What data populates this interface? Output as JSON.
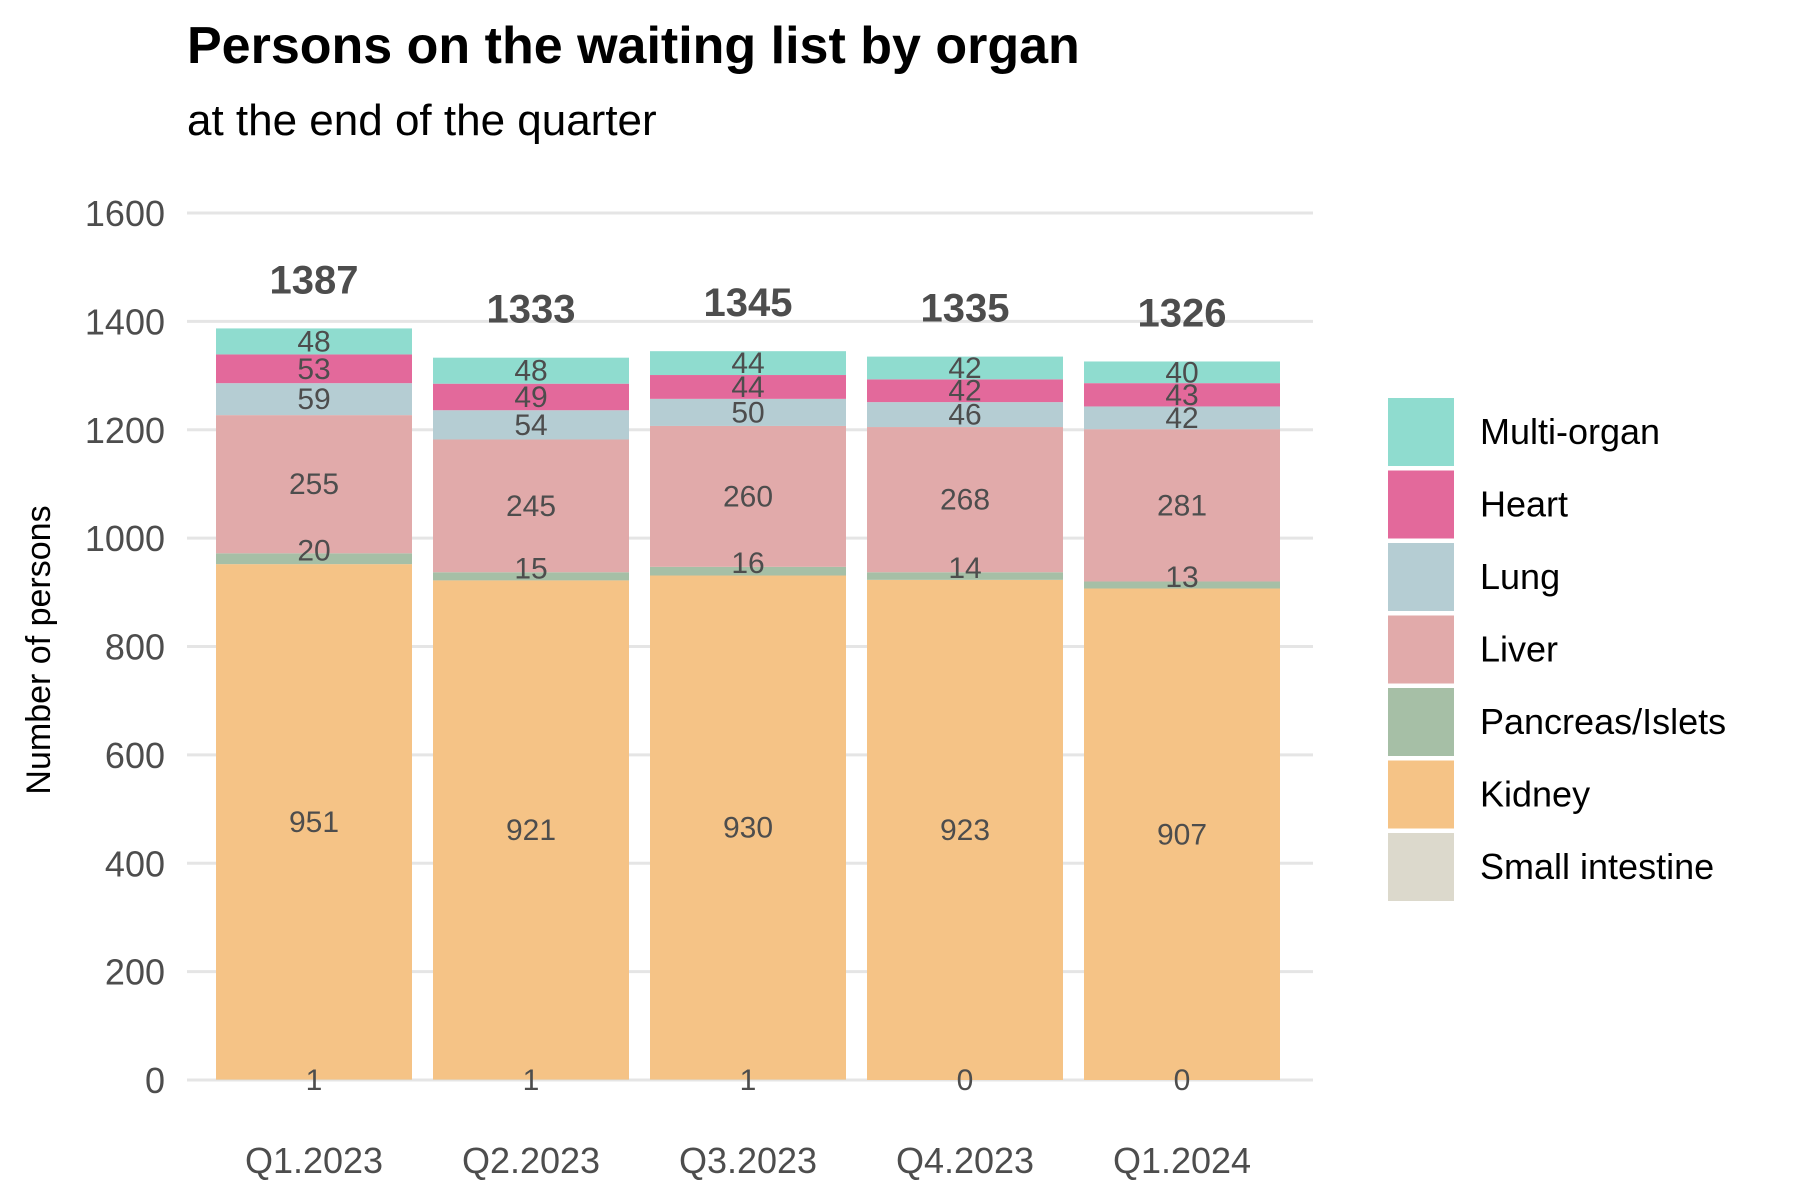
{
  "chart_data": {
    "type": "bar",
    "stacked": true,
    "title": "Persons on the waiting list by organ",
    "subtitle": "at the end of the quarter",
    "ylabel": "Number of persons",
    "xlabel": "",
    "ylim": [
      0,
      1600
    ],
    "yticks": [
      "0",
      "200",
      "400",
      "600",
      "800",
      "1000",
      "1200",
      "1400",
      "1600"
    ],
    "categories": [
      "Q1.2023",
      "Q2.2023",
      "Q3.2023",
      "Q4.2023",
      "Q1.2024"
    ],
    "totals": [
      1387,
      1333,
      1345,
      1335,
      1326
    ],
    "grid": true,
    "legend_position": "right",
    "series": [
      {
        "name": "Small intestine",
        "color": "#dcd9cc",
        "values": [
          1,
          1,
          1,
          0,
          0
        ]
      },
      {
        "name": "Kidney",
        "color": "#f5c386",
        "values": [
          951,
          921,
          930,
          923,
          907
        ]
      },
      {
        "name": "Pancreas/Islets",
        "color": "#a6bfa6",
        "values": [
          20,
          15,
          16,
          14,
          13
        ]
      },
      {
        "name": "Liver",
        "color": "#e1aaaa",
        "values": [
          255,
          245,
          260,
          268,
          281
        ]
      },
      {
        "name": "Lung",
        "color": "#b5cdd3",
        "values": [
          59,
          54,
          50,
          46,
          42
        ]
      },
      {
        "name": "Heart",
        "color": "#e3699b",
        "values": [
          53,
          49,
          44,
          42,
          43
        ]
      },
      {
        "name": "Multi-organ",
        "color": "#8fdccf",
        "values": [
          48,
          48,
          44,
          42,
          40
        ]
      }
    ],
    "legend_order": [
      "Multi-organ",
      "Heart",
      "Lung",
      "Liver",
      "Pancreas/Islets",
      "Kidney",
      "Small intestine"
    ]
  }
}
